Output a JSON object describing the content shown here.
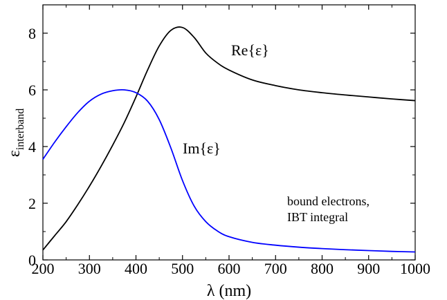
{
  "chart_data": {
    "type": "line",
    "xlabel_symbol": "λ",
    "xlabel_unit": "(nm)",
    "ylabel_symbol": "ε",
    "ylabel_sub": "interband",
    "xlim": [
      200,
      1000
    ],
    "ylim": [
      0,
      9
    ],
    "x_ticks": [
      200,
      300,
      400,
      500,
      600,
      700,
      800,
      900,
      1000
    ],
    "y_ticks": [
      0,
      2,
      4,
      6,
      8
    ],
    "grid": false,
    "series": [
      {
        "name": "Re{ε}",
        "color": "#000000",
        "x": [
          200,
          225,
          250,
          275,
          300,
          325,
          350,
          375,
          400,
          425,
          450,
          475,
          500,
          525,
          550,
          575,
          600,
          650,
          700,
          750,
          800,
          850,
          900,
          950,
          1000
        ],
        "y": [
          0.35,
          0.85,
          1.35,
          1.95,
          2.6,
          3.3,
          4.05,
          4.85,
          5.75,
          6.7,
          7.55,
          8.1,
          8.2,
          7.85,
          7.3,
          6.95,
          6.7,
          6.35,
          6.15,
          6.0,
          5.9,
          5.82,
          5.75,
          5.68,
          5.62
        ]
      },
      {
        "name": "Im{ε}",
        "color": "#0000ff",
        "x": [
          200,
          225,
          250,
          275,
          300,
          325,
          350,
          375,
          400,
          425,
          450,
          475,
          500,
          525,
          550,
          575,
          600,
          650,
          700,
          750,
          800,
          850,
          900,
          950,
          1000
        ],
        "y": [
          3.55,
          4.15,
          4.7,
          5.2,
          5.6,
          5.85,
          5.97,
          6.0,
          5.9,
          5.6,
          4.95,
          3.95,
          2.8,
          1.9,
          1.35,
          1.02,
          0.82,
          0.62,
          0.52,
          0.45,
          0.4,
          0.36,
          0.33,
          0.3,
          0.28
        ]
      }
    ],
    "annotations": {
      "re_label": "Re{ε}",
      "im_label": "Im{ε}",
      "note_line1": "bound electrons,",
      "note_line2": "IBT integral"
    }
  }
}
